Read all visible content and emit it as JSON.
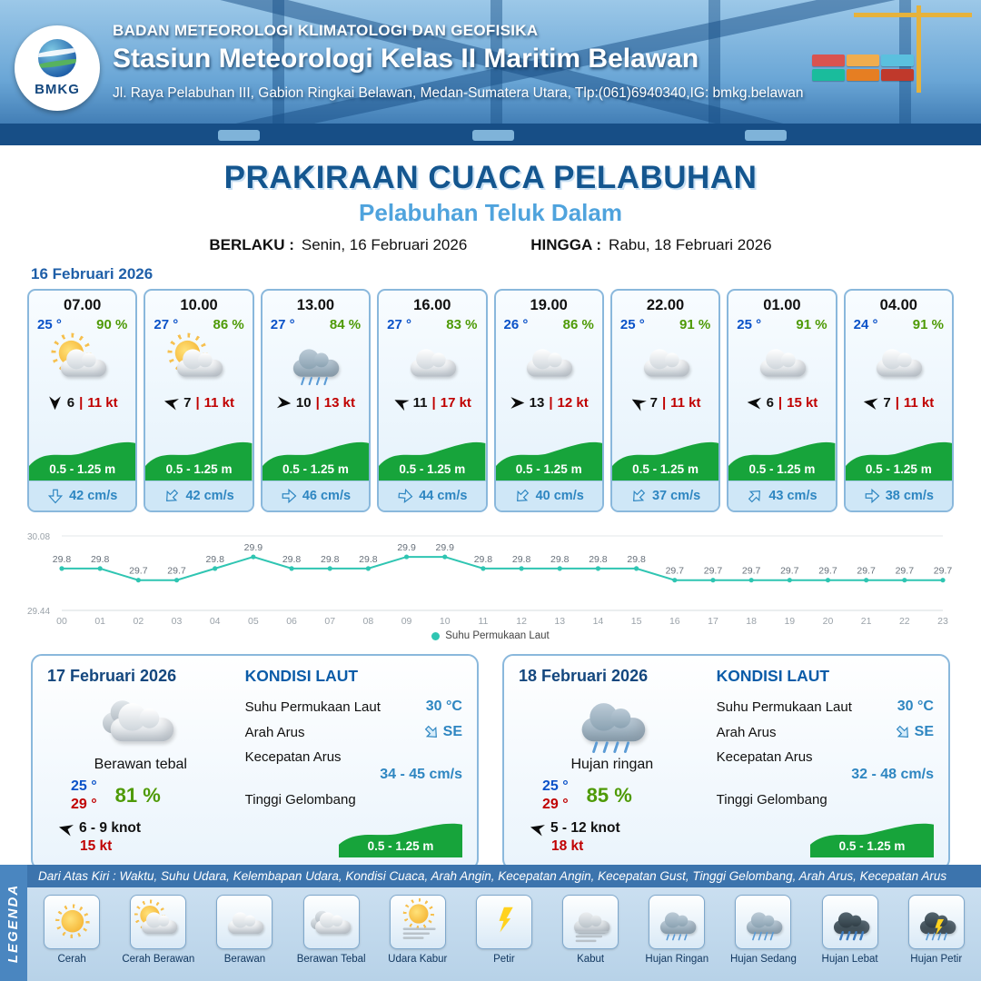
{
  "header": {
    "org_line": "BADAN METEOROLOGI KLIMATOLOGI DAN GEOFISIKA",
    "station_line": "Stasiun Meteorologi Kelas II Maritim Belawan",
    "address_line": "Jl. Raya Pelabuhan III, Gabion Ringkai Belawan, Medan-Sumatera Utara, Tlp:(061)6940340,IG: bmkg.belawan",
    "logo_text": "BMKG"
  },
  "title": {
    "main": "PRAKIRAAN CUACA PELABUHAN",
    "subtitle": "Pelabuhan Teluk Dalam",
    "valid_from_label": "BERLAKU :",
    "valid_from": "Senin, 16 Februari 2026",
    "valid_to_label": "HINGGA :",
    "valid_to": "Rabu, 18 Februari 2026"
  },
  "ui": {
    "divider": "|"
  },
  "forecast": {
    "date": "16 Februari 2026",
    "cards": [
      {
        "time": "07.00",
        "temp": "25 °",
        "rh": "90 %",
        "icon": "cerah-berawan",
        "wind_deg": 90,
        "wind": "6",
        "gust": "11 kt",
        "wave": "0.5 - 1.25 m",
        "cur_deg": 90,
        "current": "42 cm/s"
      },
      {
        "time": "10.00",
        "temp": "27 °",
        "rh": "86 %",
        "icon": "cerah-berawan",
        "wind_deg": 195,
        "wind": "7",
        "gust": "11 kt",
        "wave": "0.5 - 1.25 m",
        "cur_deg": 135,
        "current": "42 cm/s"
      },
      {
        "time": "13.00",
        "temp": "27 °",
        "rh": "84 %",
        "icon": "hujan-ringan",
        "wind_deg": 5,
        "wind": "10",
        "gust": "13 kt",
        "wave": "0.5 - 1.25 m",
        "cur_deg": 0,
        "current": "46 cm/s"
      },
      {
        "time": "16.00",
        "temp": "27 °",
        "rh": "83 %",
        "icon": "berawan",
        "wind_deg": 205,
        "wind": "11",
        "gust": "17 kt",
        "wave": "0.5 - 1.25 m",
        "cur_deg": 5,
        "current": "44 cm/s"
      },
      {
        "time": "19.00",
        "temp": "26 °",
        "rh": "86 %",
        "icon": "berawan",
        "wind_deg": 0,
        "wind": "13",
        "gust": "12 kt",
        "wave": "0.5 - 1.25 m",
        "cur_deg": 135,
        "current": "40 cm/s"
      },
      {
        "time": "22.00",
        "temp": "25 °",
        "rh": "91 %",
        "icon": "berawan",
        "wind_deg": 210,
        "wind": "7",
        "gust": "11 kt",
        "wave": "0.5 - 1.25 m",
        "cur_deg": 135,
        "current": "37 cm/s"
      },
      {
        "time": "01.00",
        "temp": "25 °",
        "rh": "91 %",
        "icon": "berawan",
        "wind_deg": 185,
        "wind": "6",
        "gust": "15 kt",
        "wave": "0.5 - 1.25 m",
        "cur_deg": 315,
        "current": "43 cm/s"
      },
      {
        "time": "04.00",
        "temp": "24 °",
        "rh": "91 %",
        "icon": "berawan",
        "wind_deg": 190,
        "wind": "7",
        "gust": "11 kt",
        "wave": "0.5 - 1.25 m",
        "cur_deg": 0,
        "current": "38 cm/s"
      }
    ]
  },
  "chart_data": {
    "type": "line",
    "series_name": "Suhu Permukaan Laut",
    "x": [
      "00",
      "01",
      "02",
      "03",
      "04",
      "05",
      "06",
      "07",
      "08",
      "09",
      "10",
      "11",
      "12",
      "13",
      "14",
      "15",
      "16",
      "17",
      "18",
      "19",
      "20",
      "21",
      "22",
      "23"
    ],
    "values": [
      29.8,
      29.8,
      29.7,
      29.7,
      29.8,
      29.9,
      29.8,
      29.8,
      29.8,
      29.9,
      29.9,
      29.8,
      29.8,
      29.8,
      29.8,
      29.8,
      29.7,
      29.7,
      29.7,
      29.7,
      29.7,
      29.7,
      29.7,
      29.7
    ],
    "ylim": [
      29.44,
      30.08
    ],
    "line_color": "#2fc5b2",
    "grid": false,
    "legend_position": "bottom"
  },
  "day_cards": [
    {
      "date": "17 Februari 2026",
      "icon": "berawan-tebal",
      "condition": "Berawan tebal",
      "temp_min": "25 °",
      "temp_max": "29 °",
      "rh": "81 %",
      "wind_deg": 195,
      "wind": "6 - 9 knot",
      "gust": "15 kt",
      "sea_title": "KONDISI LAUT",
      "sst_label": "Suhu Permukaan Laut",
      "sst": "30 °C",
      "current_dir_label": "Arah Arus",
      "current_dir": "SE",
      "current_dir_deg": 45,
      "current_speed_label": "Kecepatan Arus",
      "current_speed": "34 - 45 cm/s",
      "wave_label": "Tinggi Gelombang",
      "wave": "0.5 - 1.25 m"
    },
    {
      "date": "18 Februari 2026",
      "icon": "hujan-ringan",
      "condition": "Hujan ringan",
      "temp_min": "25 °",
      "temp_max": "29 °",
      "rh": "85 %",
      "wind_deg": 195,
      "wind": "5 - 12 knot",
      "gust": "18 kt",
      "sea_title": "KONDISI LAUT",
      "sst_label": "Suhu Permukaan Laut",
      "sst": "30 °C",
      "current_dir_label": "Arah Arus",
      "current_dir": "SE",
      "current_dir_deg": 45,
      "current_speed_label": "Kecepatan Arus",
      "current_speed": "32 - 48 cm/s",
      "wave_label": "Tinggi Gelombang",
      "wave": "0.5 - 1.25 m"
    }
  ],
  "legend": {
    "title_vertical": "LEGENDA",
    "description": "Dari Atas Kiri : Waktu, Suhu Udara, Kelembapan Udara, Kondisi Cuaca, Arah Angin, Kecepatan Angin, Kecepatan Gust, Tinggi Gelombang, Arah Arus, Kecepatan Arus",
    "items": [
      {
        "label": "Cerah",
        "icon": "cerah"
      },
      {
        "label": "Cerah Berawan",
        "icon": "cerah-berawan"
      },
      {
        "label": "Berawan",
        "icon": "berawan"
      },
      {
        "label": "Berawan Tebal",
        "icon": "berawan-tebal"
      },
      {
        "label": "Udara Kabur",
        "icon": "udara-kabur"
      },
      {
        "label": "Petir",
        "icon": "petir"
      },
      {
        "label": "Kabut",
        "icon": "kabut"
      },
      {
        "label": "Hujan Ringan",
        "icon": "hujan-ringan"
      },
      {
        "label": "Hujan Sedang",
        "icon": "hujan-sedang"
      },
      {
        "label": "Hujan Lebat",
        "icon": "hujan-lebat"
      },
      {
        "label": "Hujan Petir",
        "icon": "hujan-petir"
      }
    ]
  },
  "colors": {
    "header_blue": "#2f6ba6",
    "title_blue": "#14568f",
    "subtitle_blue": "#4fa3dd",
    "temp_blue": "#0b52c8",
    "humidity_green": "#4e9a06",
    "gust_red": "#c00000",
    "wave_green": "#17a43b",
    "current_blue": "#2e86c1",
    "chart_teal": "#2fc5b2"
  }
}
